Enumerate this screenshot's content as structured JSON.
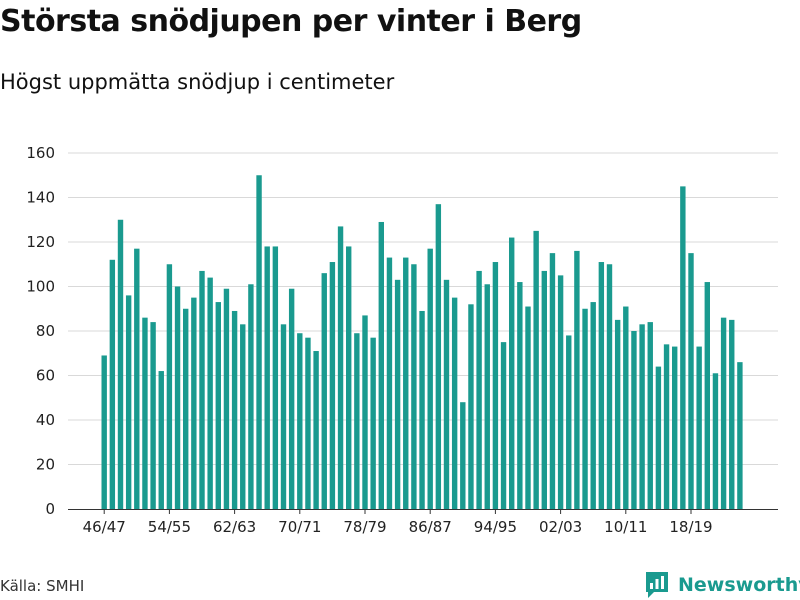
{
  "header": {
    "title": "Största snödjupen per vinter i Berg",
    "subtitle": "Högst uppmätta snödjup i centimeter"
  },
  "footer": {
    "source": "Källa: SMHI",
    "brand": "Newsworthy"
  },
  "colors": {
    "bar": "#1a9a8f",
    "grid": "#d9d9d9",
    "axis": "#333333"
  },
  "chart_data": {
    "type": "bar",
    "title": "Största snödjupen per vinter i Berg",
    "subtitle": "Högst uppmätta snödjup i centimeter",
    "xlabel": "",
    "ylabel": "",
    "ylim": [
      0,
      160
    ],
    "yticks": [
      0,
      20,
      40,
      60,
      80,
      100,
      120,
      140,
      160
    ],
    "grid": true,
    "xtick_labels": [
      "46/47",
      "54/55",
      "62/63",
      "70/71",
      "78/79",
      "86/87",
      "94/95",
      "02/03",
      "10/11",
      "18/19"
    ],
    "categories": [
      "46/47",
      "47/48",
      "48/49",
      "49/50",
      "50/51",
      "51/52",
      "52/53",
      "53/54",
      "54/55",
      "55/56",
      "56/57",
      "57/58",
      "58/59",
      "59/60",
      "60/61",
      "61/62",
      "62/63",
      "63/64",
      "64/65",
      "65/66",
      "66/67",
      "67/68",
      "68/69",
      "69/70",
      "70/71",
      "71/72",
      "72/73",
      "73/74",
      "74/75",
      "75/76",
      "76/77",
      "77/78",
      "78/79",
      "79/80",
      "80/81",
      "81/82",
      "82/83",
      "83/84",
      "84/85",
      "85/86",
      "86/87",
      "87/88",
      "88/89",
      "89/90",
      "90/91",
      "91/92",
      "92/93",
      "93/94",
      "94/95",
      "95/96",
      "96/97",
      "97/98",
      "98/99",
      "99/00",
      "00/01",
      "01/02",
      "02/03",
      "03/04",
      "04/05",
      "05/06",
      "06/07",
      "07/08",
      "08/09",
      "09/10",
      "10/11",
      "11/12",
      "12/13",
      "13/14",
      "14/15",
      "15/16",
      "16/17",
      "17/18",
      "18/19",
      "19/20",
      "20/21",
      "21/22",
      "22/23",
      "23/24",
      "24/25"
    ],
    "values": [
      69,
      112,
      130,
      96,
      117,
      86,
      84,
      62,
      110,
      100,
      90,
      95,
      107,
      104,
      93,
      99,
      89,
      83,
      101,
      150,
      118,
      118,
      83,
      99,
      79,
      77,
      71,
      106,
      111,
      127,
      118,
      79,
      87,
      77,
      129,
      113,
      103,
      113,
      110,
      89,
      117,
      137,
      103,
      95,
      48,
      92,
      107,
      101,
      111,
      75,
      122,
      102,
      91,
      125,
      107,
      115,
      105,
      78,
      116,
      90,
      93,
      111,
      110,
      85,
      91,
      80,
      83,
      84,
      64,
      74,
      73,
      145,
      115,
      73,
      102,
      61,
      86,
      85,
      66
    ]
  }
}
